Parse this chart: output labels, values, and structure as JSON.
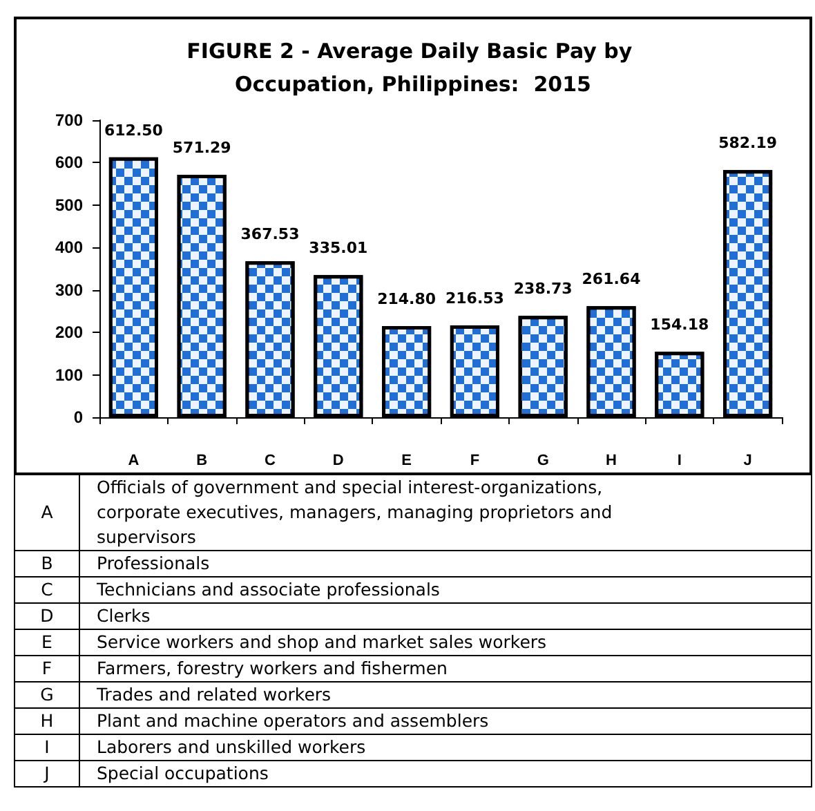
{
  "chart_data": {
    "type": "bar",
    "title": "FIGURE 2 - Average Daily Basic Pay by Occupation, Philippines:  2015",
    "categories": [
      "A",
      "B",
      "C",
      "D",
      "E",
      "F",
      "G",
      "H",
      "I",
      "J"
    ],
    "values": [
      612.5,
      571.29,
      367.53,
      335.01,
      214.8,
      216.53,
      238.73,
      261.64,
      154.18,
      582.19
    ],
    "value_labels": [
      "612.50",
      "571.29",
      "367.53",
      "335.01",
      "214.80",
      "216.53",
      "238.73",
      "261.64",
      "154.18",
      "582.19"
    ],
    "color": "#1f6fd6",
    "ylim": [
      0,
      700
    ],
    "yticks": [
      0,
      100,
      200,
      300,
      400,
      500,
      600,
      700
    ],
    "grid": false,
    "annotations": [
      "Officials of government and special interest-organizations, corporate executives, managers, managing proprietors and supervisors",
      "Professionals",
      "Technicians and associate professionals",
      "Clerks",
      "Service workers and shop and market sales workers",
      "Farmers, forestry workers and fishermen",
      "Trades and related workers",
      "Plant and machine operators and assemblers",
      "Laborers and unskilled workers",
      "Special occupations"
    ]
  }
}
